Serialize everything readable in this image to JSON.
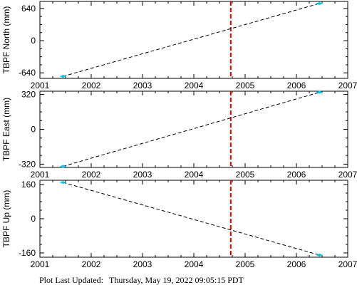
{
  "chart_data": [
    {
      "type": "line",
      "ylabel": "TBPF North (mm)",
      "xlim": [
        2001,
        2007
      ],
      "ylim": [
        -750,
        780
      ],
      "xticks": [
        2001,
        2002,
        2003,
        2004,
        2005,
        2006,
        2007
      ],
      "yticks": [
        -640,
        0,
        640
      ],
      "grid": false,
      "marker_line_x": 2004.72,
      "series": [
        {
          "name": "",
          "x": [
            2001.45,
            2006.45
          ],
          "y": [
            -710,
            740
          ]
        }
      ]
    },
    {
      "type": "line",
      "ylabel": "TBPF East (mm)",
      "xlim": [
        2001,
        2007
      ],
      "ylim": [
        -350,
        350
      ],
      "xticks": [
        2001,
        2002,
        2003,
        2004,
        2005,
        2006,
        2007
      ],
      "yticks": [
        -320,
        0,
        320
      ],
      "grid": false,
      "marker_line_x": 2004.72,
      "series": [
        {
          "name": "",
          "x": [
            2001.45,
            2006.45
          ],
          "y": [
            -340,
            340
          ]
        }
      ]
    },
    {
      "type": "line",
      "ylabel": "TBPF Up (mm)",
      "xlim": [
        2001,
        2007
      ],
      "ylim": [
        -180,
        180
      ],
      "xticks": [
        2001,
        2002,
        2003,
        2004,
        2005,
        2006,
        2007
      ],
      "yticks": [
        -160,
        0,
        160
      ],
      "grid": false,
      "marker_line_x": 2004.72,
      "series": [
        {
          "name": "",
          "x": [
            2001.45,
            2006.45
          ],
          "y": [
            170,
            -170
          ]
        }
      ]
    }
  ],
  "footer": {
    "label": "Plot Last Updated:",
    "timestamp": "Thursday, May 19, 2022 09:05:15 PDT"
  },
  "colors": {
    "marker_line": "#dd0000",
    "data_point": "#00c8e6",
    "trend_line": "#000000"
  }
}
